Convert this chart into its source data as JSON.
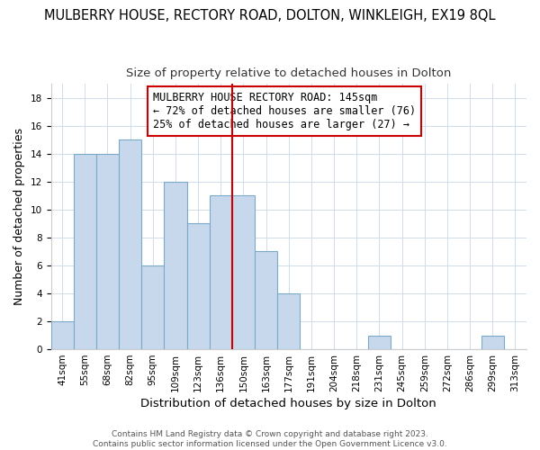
{
  "title": "MULBERRY HOUSE, RECTORY ROAD, DOLTON, WINKLEIGH, EX19 8QL",
  "subtitle": "Size of property relative to detached houses in Dolton",
  "xlabel": "Distribution of detached houses by size in Dolton",
  "ylabel": "Number of detached properties",
  "bar_labels": [
    "41sqm",
    "55sqm",
    "68sqm",
    "82sqm",
    "95sqm",
    "109sqm",
    "123sqm",
    "136sqm",
    "150sqm",
    "163sqm",
    "177sqm",
    "191sqm",
    "204sqm",
    "218sqm",
    "231sqm",
    "245sqm",
    "259sqm",
    "272sqm",
    "286sqm",
    "299sqm",
    "313sqm"
  ],
  "bar_values": [
    2,
    14,
    14,
    15,
    6,
    12,
    9,
    11,
    11,
    7,
    4,
    0,
    0,
    0,
    1,
    0,
    0,
    0,
    0,
    1,
    0
  ],
  "bar_color": "#c8d8ec",
  "bar_edge_color": "#7aaac8",
  "vline_x_index": 8,
  "vline_color": "#cc0000",
  "ylim": [
    0,
    19
  ],
  "yticks": [
    0,
    2,
    4,
    6,
    8,
    10,
    12,
    14,
    16,
    18
  ],
  "annotation_title": "MULBERRY HOUSE RECTORY ROAD: 145sqm",
  "annotation_line1": "← 72% of detached houses are smaller (76)",
  "annotation_line2": "25% of detached houses are larger (27) →",
  "footer_line1": "Contains HM Land Registry data © Crown copyright and database right 2023.",
  "footer_line2": "Contains public sector information licensed under the Open Government Licence v3.0.",
  "title_fontsize": 10.5,
  "subtitle_fontsize": 9.5,
  "xlabel_fontsize": 9.5,
  "ylabel_fontsize": 9,
  "tick_fontsize": 7.5,
  "footer_fontsize": 6.5,
  "annotation_fontsize": 8.5,
  "grid_color": "#d0dce8"
}
